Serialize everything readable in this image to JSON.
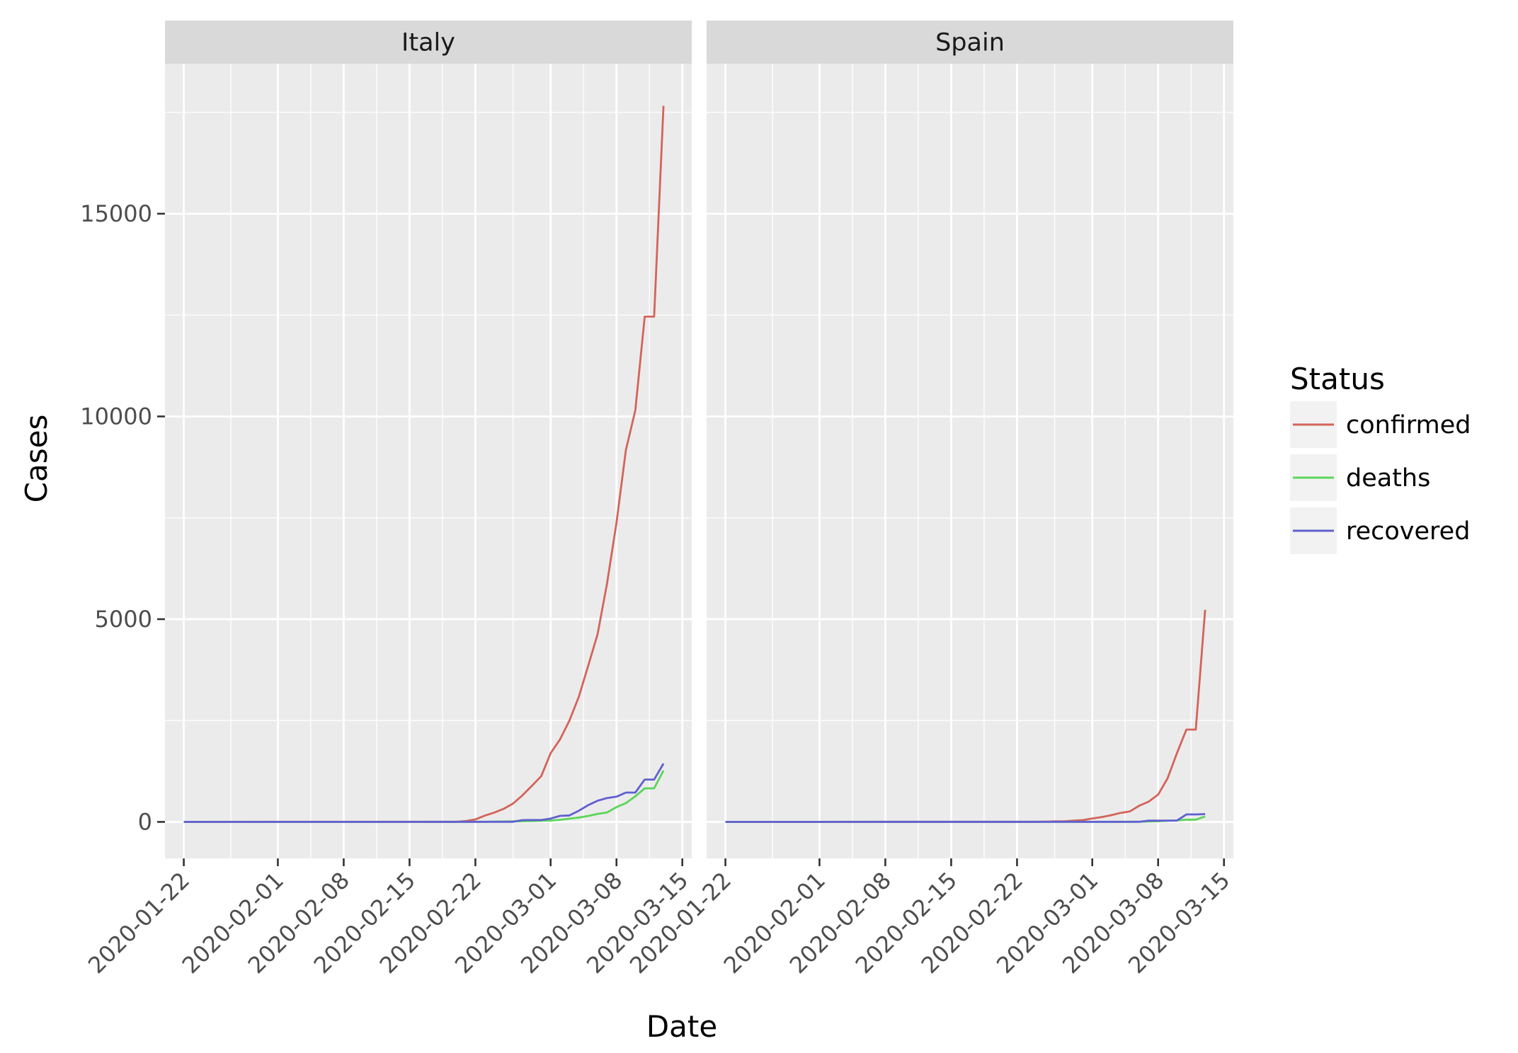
{
  "chart_data": {
    "type": "line",
    "xlabel": "Date",
    "ylabel": "Cases",
    "ylim": [
      -900,
      18700
    ],
    "yticks": [
      0,
      5000,
      10000,
      15000
    ],
    "xticks": [
      "2020-01-22",
      "2020-02-01",
      "2020-02-08",
      "2020-02-15",
      "2020-02-22",
      "2020-03-01",
      "2020-03-08",
      "2020-03-15"
    ],
    "x_range": [
      "2020-01-20",
      "2020-03-16"
    ],
    "grid": true,
    "legend": {
      "title": "Status",
      "position": "right",
      "entries": [
        "confirmed",
        "deaths",
        "recovered"
      ]
    },
    "colors": {
      "confirmed": "#d3645a",
      "deaths": "#5ad55a",
      "recovered": "#6060d0"
    },
    "panel_background": "#ebebeb",
    "strip_background": "#d9d9d9",
    "facets": [
      {
        "label": "Italy",
        "series": [
          {
            "name": "confirmed",
            "points": [
              [
                "2020-01-22",
                0
              ],
              [
                "2020-01-31",
                2
              ],
              [
                "2020-02-06",
                3
              ],
              [
                "2020-02-20",
                3
              ],
              [
                "2020-02-21",
                20
              ],
              [
                "2020-02-22",
                62
              ],
              [
                "2020-02-23",
                155
              ],
              [
                "2020-02-24",
                229
              ],
              [
                "2020-02-25",
                322
              ],
              [
                "2020-02-26",
                453
              ],
              [
                "2020-02-27",
                655
              ],
              [
                "2020-02-28",
                888
              ],
              [
                "2020-02-29",
                1128
              ],
              [
                "2020-03-01",
                1694
              ],
              [
                "2020-03-02",
                2036
              ],
              [
                "2020-03-03",
                2502
              ],
              [
                "2020-03-04",
                3089
              ],
              [
                "2020-03-05",
                3858
              ],
              [
                "2020-03-06",
                4636
              ],
              [
                "2020-03-07",
                5883
              ],
              [
                "2020-03-08",
                7375
              ],
              [
                "2020-03-09",
                9172
              ],
              [
                "2020-03-10",
                10149
              ],
              [
                "2020-03-11",
                12462
              ],
              [
                "2020-03-12",
                12462
              ],
              [
                "2020-03-13",
                17660
              ]
            ]
          },
          {
            "name": "deaths",
            "points": [
              [
                "2020-01-22",
                0
              ],
              [
                "2020-02-20",
                0
              ],
              [
                "2020-02-21",
                1
              ],
              [
                "2020-02-22",
                2
              ],
              [
                "2020-02-23",
                3
              ],
              [
                "2020-02-24",
                7
              ],
              [
                "2020-02-25",
                10
              ],
              [
                "2020-02-26",
                12
              ],
              [
                "2020-02-27",
                17
              ],
              [
                "2020-02-28",
                21
              ],
              [
                "2020-02-29",
                29
              ],
              [
                "2020-03-01",
                34
              ],
              [
                "2020-03-02",
                52
              ],
              [
                "2020-03-03",
                79
              ],
              [
                "2020-03-04",
                107
              ],
              [
                "2020-03-05",
                148
              ],
              [
                "2020-03-06",
                197
              ],
              [
                "2020-03-07",
                233
              ],
              [
                "2020-03-08",
                366
              ],
              [
                "2020-03-09",
                463
              ],
              [
                "2020-03-10",
                631
              ],
              [
                "2020-03-11",
                827
              ],
              [
                "2020-03-12",
                827
              ],
              [
                "2020-03-13",
                1266
              ]
            ]
          },
          {
            "name": "recovered",
            "points": [
              [
                "2020-01-22",
                0
              ],
              [
                "2020-02-26",
                3
              ],
              [
                "2020-02-27",
                45
              ],
              [
                "2020-02-28",
                46
              ],
              [
                "2020-02-29",
                46
              ],
              [
                "2020-03-01",
                83
              ],
              [
                "2020-03-02",
                149
              ],
              [
                "2020-03-03",
                160
              ],
              [
                "2020-03-04",
                276
              ],
              [
                "2020-03-05",
                414
              ],
              [
                "2020-03-06",
                523
              ],
              [
                "2020-03-07",
                589
              ],
              [
                "2020-03-08",
                622
              ],
              [
                "2020-03-09",
                724
              ],
              [
                "2020-03-10",
                724
              ],
              [
                "2020-03-11",
                1045
              ],
              [
                "2020-03-12",
                1045
              ],
              [
                "2020-03-13",
                1439
              ]
            ]
          }
        ]
      },
      {
        "label": "Spain",
        "series": [
          {
            "name": "confirmed",
            "points": [
              [
                "2020-01-22",
                0
              ],
              [
                "2020-01-31",
                1
              ],
              [
                "2020-02-09",
                2
              ],
              [
                "2020-02-24",
                2
              ],
              [
                "2020-02-25",
                6
              ],
              [
                "2020-02-26",
                13
              ],
              [
                "2020-02-27",
                15
              ],
              [
                "2020-02-28",
                32
              ],
              [
                "2020-02-29",
                45
              ],
              [
                "2020-03-01",
                84
              ],
              [
                "2020-03-02",
                120
              ],
              [
                "2020-03-03",
                165
              ],
              [
                "2020-03-04",
                222
              ],
              [
                "2020-03-05",
                259
              ],
              [
                "2020-03-06",
                400
              ],
              [
                "2020-03-07",
                500
              ],
              [
                "2020-03-08",
                673
              ],
              [
                "2020-03-09",
                1073
              ],
              [
                "2020-03-10",
                1695
              ],
              [
                "2020-03-11",
                2277
              ],
              [
                "2020-03-12",
                2277
              ],
              [
                "2020-03-13",
                5232
              ]
            ]
          },
          {
            "name": "deaths",
            "points": [
              [
                "2020-01-22",
                0
              ],
              [
                "2020-03-02",
                0
              ],
              [
                "2020-03-03",
                1
              ],
              [
                "2020-03-04",
                2
              ],
              [
                "2020-03-05",
                3
              ],
              [
                "2020-03-06",
                5
              ],
              [
                "2020-03-07",
                10
              ],
              [
                "2020-03-08",
                17
              ],
              [
                "2020-03-09",
                28
              ],
              [
                "2020-03-10",
                35
              ],
              [
                "2020-03-11",
                54
              ],
              [
                "2020-03-12",
                55
              ],
              [
                "2020-03-13",
                133
              ]
            ]
          },
          {
            "name": "recovered",
            "points": [
              [
                "2020-01-22",
                0
              ],
              [
                "2020-02-14",
                2
              ],
              [
                "2020-03-06",
                2
              ],
              [
                "2020-03-07",
                30
              ],
              [
                "2020-03-08",
                30
              ],
              [
                "2020-03-09",
                32
              ],
              [
                "2020-03-10",
                32
              ],
              [
                "2020-03-11",
                183
              ],
              [
                "2020-03-12",
                183
              ],
              [
                "2020-03-13",
                193
              ]
            ]
          }
        ]
      }
    ]
  }
}
